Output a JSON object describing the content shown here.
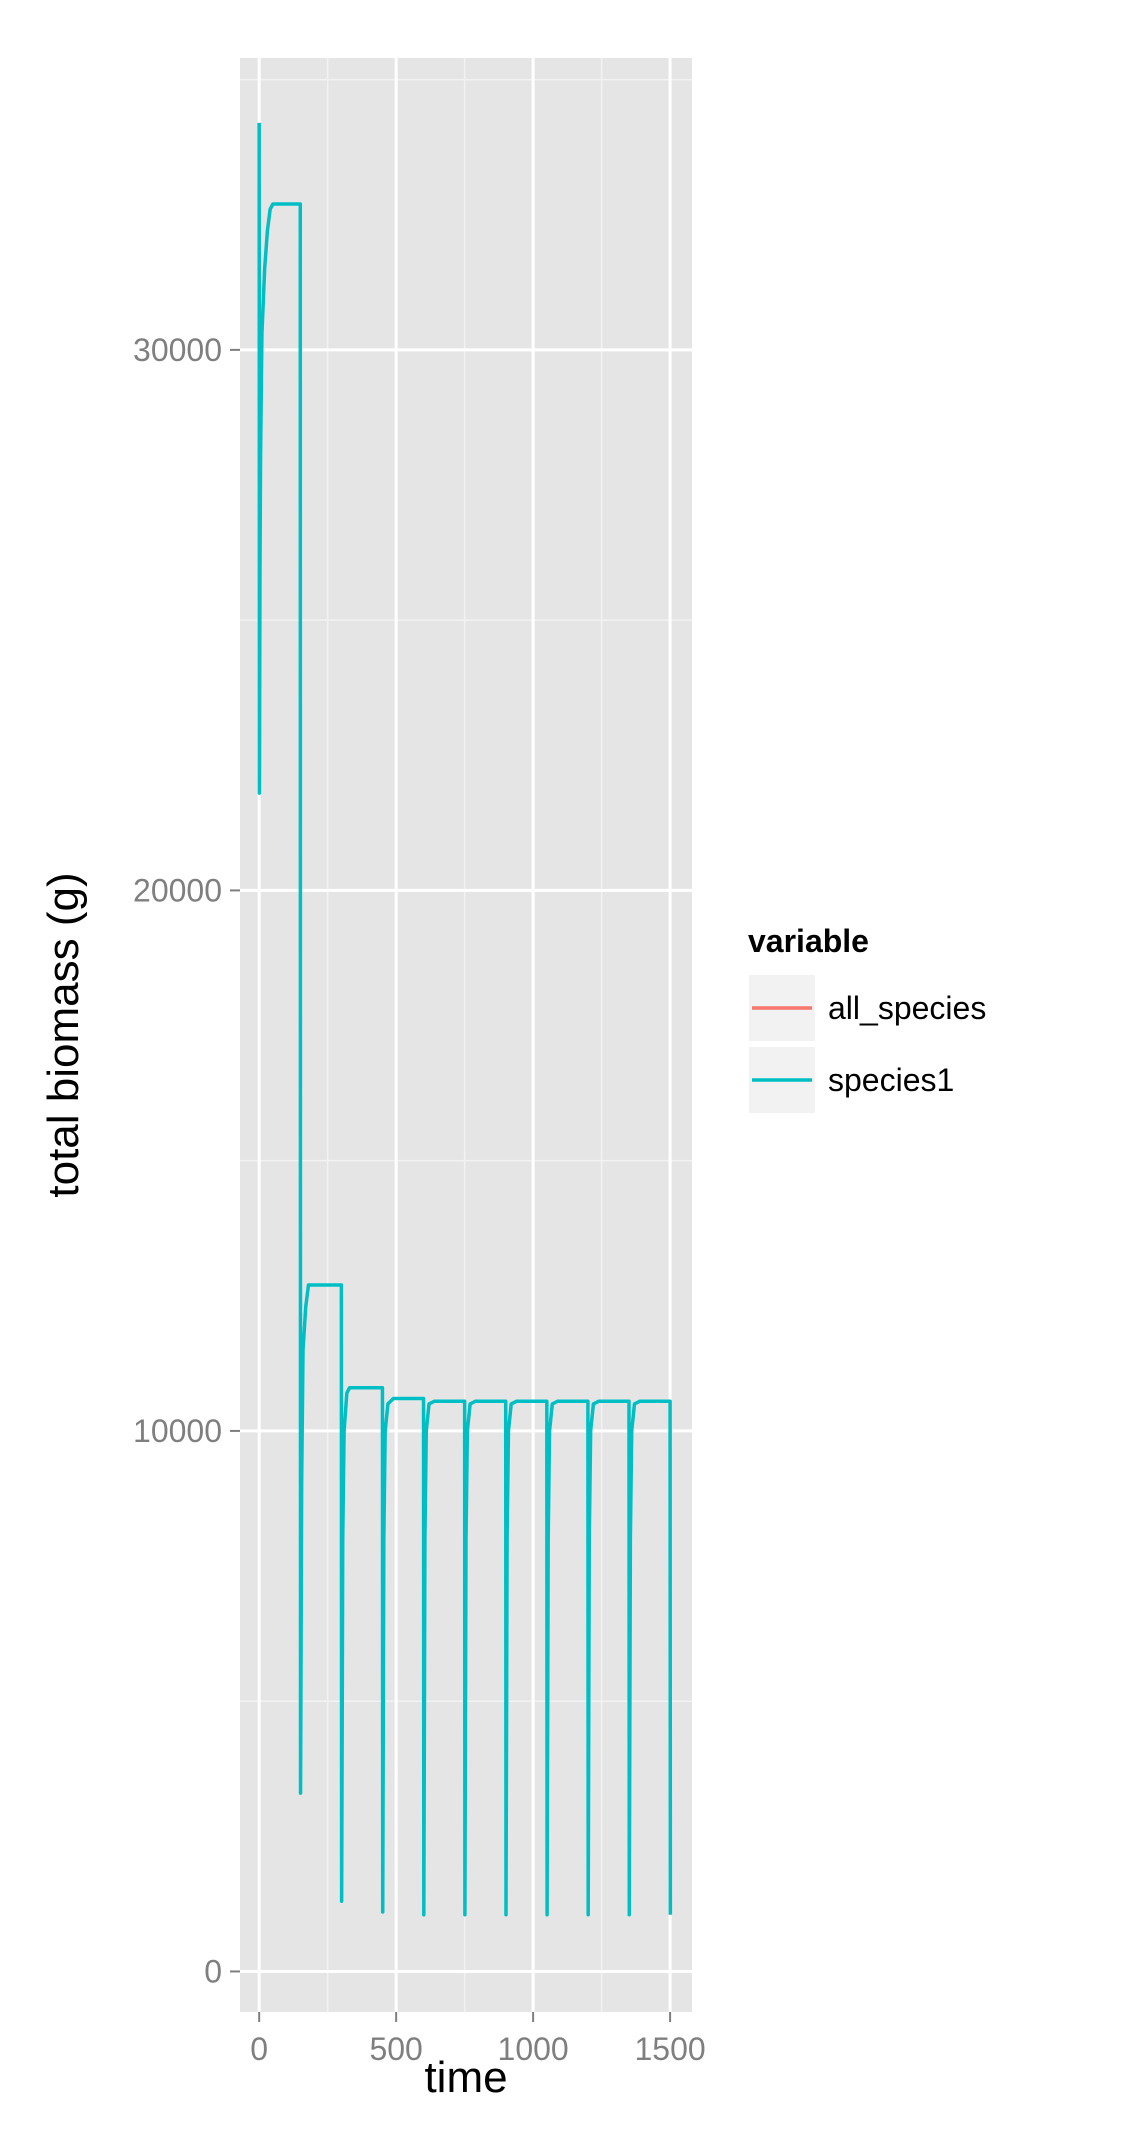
{
  "chart_data": {
    "type": "line",
    "xlabel": "time",
    "ylabel": "total biomass (g)",
    "xlim": [
      -70,
      1580
    ],
    "ylim": [
      -750,
      35400
    ],
    "x_ticks": [
      0,
      500,
      1000,
      1500
    ],
    "y_ticks": [
      0,
      10000,
      20000,
      30000
    ],
    "grid": true,
    "legend": {
      "title": "variable",
      "position": "right",
      "entries": [
        {
          "name": "all_species",
          "color": "#F8766D"
        },
        {
          "name": "species1",
          "color": "#00BFC4"
        }
      ]
    },
    "series": [
      {
        "name": "species1",
        "color": "#00BFC4",
        "x": [
          0,
          1,
          2,
          3,
          5,
          10,
          20,
          30,
          40,
          50,
          60,
          100,
          150,
          151,
          153,
          155,
          160,
          170,
          180,
          200,
          250,
          300,
          301,
          303,
          305,
          310,
          320,
          330,
          350,
          400,
          450,
          451,
          453,
          455,
          460,
          470,
          490,
          500,
          550,
          600,
          601,
          603,
          605,
          610,
          620,
          640,
          700,
          750,
          751,
          753,
          755,
          760,
          770,
          790,
          850,
          900,
          901,
          903,
          905,
          910,
          920,
          940,
          1000,
          1050,
          1051,
          1053,
          1055,
          1060,
          1070,
          1090,
          1150,
          1200,
          1201,
          1203,
          1205,
          1210,
          1220,
          1240,
          1300,
          1350,
          1351,
          1353,
          1355,
          1360,
          1370,
          1390,
          1450,
          1500,
          1501
        ],
        "values": [
          34200,
          21800,
          24000,
          26000,
          28000,
          30300,
          31500,
          32200,
          32600,
          32700,
          32700,
          32700,
          32700,
          3300,
          6000,
          9000,
          11500,
          12300,
          12700,
          12700,
          12700,
          12700,
          1300,
          4500,
          8000,
          10000,
          10700,
          10800,
          10800,
          10800,
          10800,
          1100,
          4500,
          8000,
          10000,
          10500,
          10600,
          10600,
          10600,
          10600,
          1050,
          4500,
          8000,
          10000,
          10500,
          10550,
          10550,
          10550,
          1050,
          4500,
          8000,
          10000,
          10500,
          10550,
          10550,
          10550,
          1050,
          4500,
          8000,
          10000,
          10500,
          10550,
          10550,
          10550,
          1050,
          4500,
          8000,
          10000,
          10500,
          10550,
          10550,
          10550,
          1050,
          4500,
          8000,
          10000,
          10500,
          10550,
          10550,
          10550,
          1050,
          4500,
          8000,
          10000,
          10500,
          10550,
          10550,
          10550,
          1050
        ]
      }
    ]
  }
}
